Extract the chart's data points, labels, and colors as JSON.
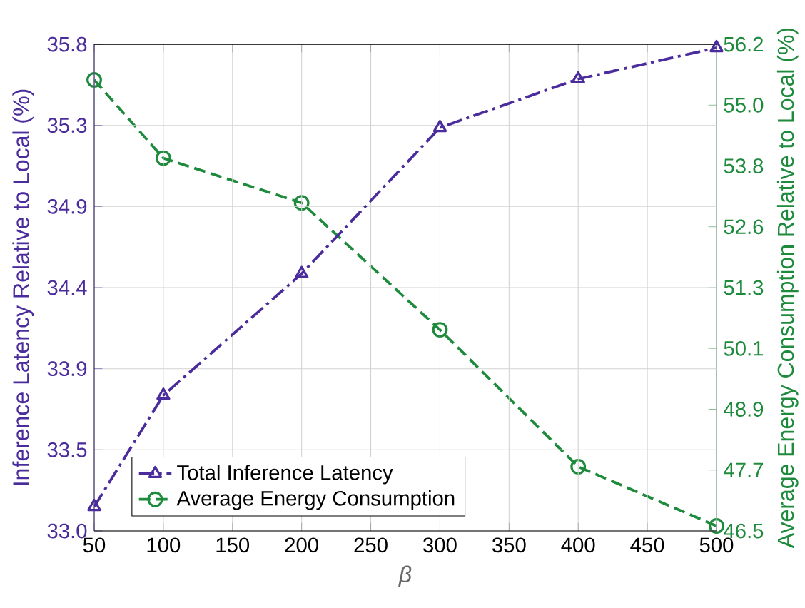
{
  "chart_data": {
    "type": "line",
    "xlabel": "*β*",
    "ylabel": "Inference Latency Relative to Local (%)",
    "y2label": "Average Energy Consumption Relative to Local (%)",
    "x": [
      50,
      100,
      200,
      300,
      400,
      500
    ],
    "series": [
      {
        "name": "Total Inference Latency",
        "color": "#4b2c9c",
        "values": [
          33.14,
          33.78,
          34.48,
          35.32,
          35.6,
          35.78
        ],
        "marker": "triangle",
        "line_style": "dashdot"
      },
      {
        "name": "Average Energy Consumption",
        "color": "#1e8a3c",
        "values": [
          55.49,
          53.93,
          53.04,
          50.51,
          47.78,
          46.6
        ],
        "marker": "circle",
        "line_style": "dashed",
        "axis": "y2"
      }
    ],
    "xlim": [
      50,
      500
    ],
    "xticks": [
      50,
      100,
      150,
      200,
      250,
      300,
      350,
      400,
      450,
      500
    ],
    "ylim": [
      33.0,
      35.8
    ],
    "yticks": [
      {
        "value": 33.0,
        "label": "33.0"
      },
      {
        "value": 33.4667,
        "label": "33.5"
      },
      {
        "value": 33.9333,
        "label": "33.9"
      },
      {
        "value": 34.4,
        "label": "34.4"
      },
      {
        "value": 34.8667,
        "label": "34.9"
      },
      {
        "value": 35.3333,
        "label": "35.3"
      },
      {
        "value": 35.8,
        "label": "35.8"
      }
    ],
    "y2lim": [
      46.5,
      56.2
    ],
    "y2ticks": [
      {
        "value": 46.5,
        "label": "46.5"
      },
      {
        "value": 47.7125,
        "label": "47.7"
      },
      {
        "value": 48.925,
        "label": "48.9"
      },
      {
        "value": 50.1375,
        "label": "50.1"
      },
      {
        "value": 51.35,
        "label": "51.3"
      },
      {
        "value": 52.5625,
        "label": "52.6"
      },
      {
        "value": 53.775,
        "label": "53.8"
      },
      {
        "value": 54.9875,
        "label": "55.0"
      },
      {
        "value": 56.2,
        "label": "56.2"
      }
    ],
    "grid": true,
    "legend": "bottom left"
  }
}
